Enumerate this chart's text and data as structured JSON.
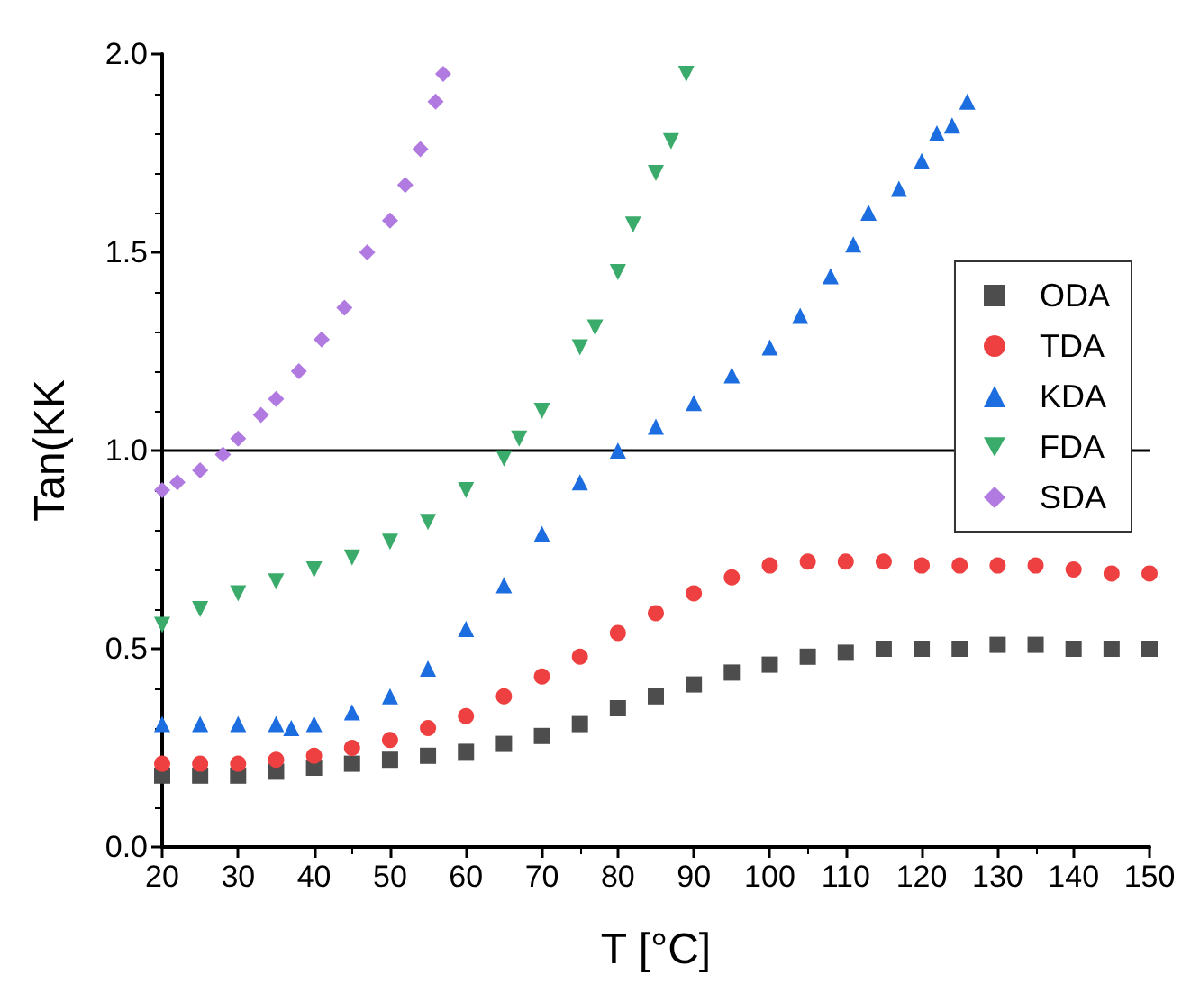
{
  "chart_data": {
    "type": "scatter",
    "xlabel": "T [°C]",
    "ylabel": "Tan(KK",
    "xlim": [
      20,
      150
    ],
    "xticks": [
      20,
      30,
      40,
      50,
      60,
      70,
      80,
      90,
      100,
      110,
      120,
      130,
      140,
      150
    ],
    "ylim": [
      0,
      2
    ],
    "yticks": [
      {
        "value": 0,
        "label": "0.0"
      },
      {
        "value": 0.5,
        "label": "0.5"
      },
      {
        "value": 1,
        "label": "1.0"
      },
      {
        "value": 1.5,
        "label": "1.5"
      },
      {
        "value": 2,
        "label": "2.0"
      }
    ],
    "grid": false,
    "legend": "right",
    "ref_lines": [
      {
        "axis": "y",
        "value": 1,
        "label": null,
        "color": "#000000"
      }
    ],
    "series": [
      {
        "name": "ODA",
        "color": "#4d4d4d",
        "marker": "square",
        "x": [
          20,
          25,
          30,
          35,
          40,
          45,
          50,
          55,
          60,
          65,
          70,
          75,
          80,
          85,
          90,
          95,
          100,
          105,
          110,
          115,
          120,
          125,
          130,
          135,
          140,
          145,
          150
        ],
        "values": [
          0.18,
          0.18,
          0.18,
          0.19,
          0.2,
          0.21,
          0.22,
          0.23,
          0.24,
          0.26,
          0.28,
          0.31,
          0.35,
          0.38,
          0.41,
          0.44,
          0.46,
          0.48,
          0.49,
          0.5,
          0.5,
          0.5,
          0.51,
          0.51,
          0.5,
          0.5,
          0.5
        ]
      },
      {
        "name": "TDA",
        "color": "#ee4040",
        "marker": "circle",
        "x": [
          20,
          25,
          30,
          35,
          40,
          45,
          50,
          55,
          60,
          65,
          70,
          75,
          80,
          85,
          90,
          95,
          100,
          105,
          110,
          115,
          120,
          125,
          130,
          135,
          140,
          145,
          150
        ],
        "values": [
          0.21,
          0.21,
          0.21,
          0.22,
          0.23,
          0.25,
          0.27,
          0.3,
          0.33,
          0.38,
          0.43,
          0.48,
          0.54,
          0.59,
          0.64,
          0.68,
          0.71,
          0.72,
          0.72,
          0.72,
          0.71,
          0.71,
          0.71,
          0.71,
          0.7,
          0.69,
          0.69
        ]
      },
      {
        "name": "KDA",
        "color": "#1c6de0",
        "marker": "triangle",
        "x": [
          20,
          25,
          30,
          35,
          37,
          40,
          45,
          50,
          55,
          60,
          65,
          70,
          75,
          80,
          85,
          90,
          95,
          100,
          104,
          108,
          111,
          113,
          117,
          120,
          122,
          124,
          126
        ],
        "values": [
          0.31,
          0.31,
          0.31,
          0.31,
          0.3,
          0.31,
          0.34,
          0.38,
          0.45,
          0.55,
          0.66,
          0.79,
          0.92,
          1.0,
          1.06,
          1.12,
          1.19,
          1.26,
          1.34,
          1.44,
          1.52,
          1.6,
          1.66,
          1.73,
          1.8,
          1.82,
          1.88
        ]
      },
      {
        "name": "FDA",
        "color": "#3aab6a",
        "marker": "triangle-down",
        "x": [
          20,
          25,
          30,
          35,
          40,
          45,
          50,
          55,
          60,
          65,
          67,
          70,
          75,
          77,
          80,
          82,
          85,
          87,
          89
        ],
        "values": [
          0.56,
          0.6,
          0.64,
          0.67,
          0.7,
          0.73,
          0.77,
          0.82,
          0.9,
          0.98,
          1.03,
          1.1,
          1.26,
          1.31,
          1.45,
          1.57,
          1.7,
          1.78,
          1.95
        ]
      },
      {
        "name": "SDA",
        "color": "#b07ae0",
        "marker": "diamond",
        "x": [
          20,
          22,
          25,
          28,
          30,
          33,
          35,
          38,
          41,
          44,
          47,
          50,
          52,
          54,
          56,
          57
        ],
        "values": [
          0.9,
          0.92,
          0.95,
          0.99,
          1.03,
          1.09,
          1.13,
          1.2,
          1.28,
          1.36,
          1.5,
          1.58,
          1.67,
          1.76,
          1.88,
          1.95
        ]
      }
    ]
  }
}
